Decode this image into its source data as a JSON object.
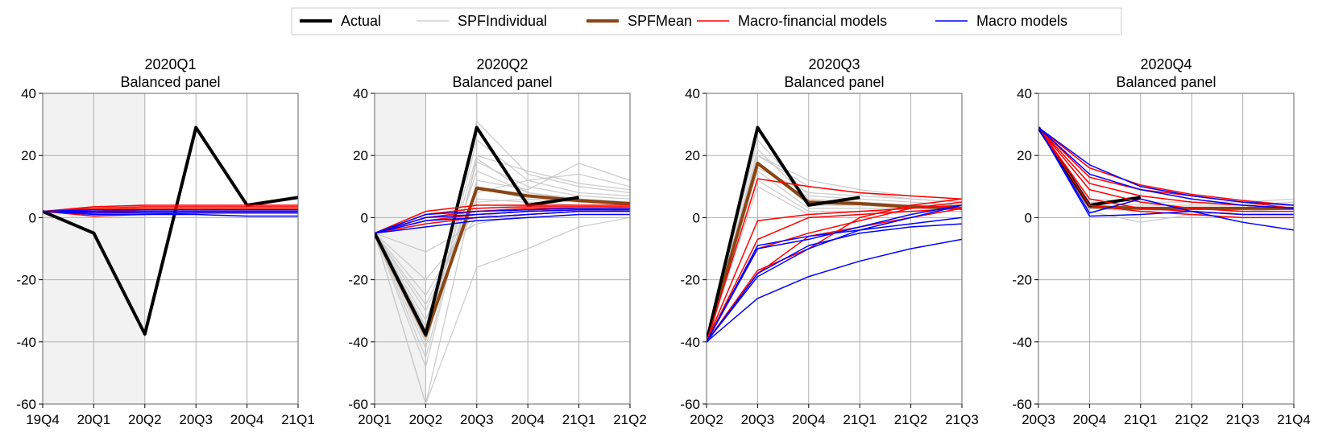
{
  "legend": {
    "placement": "top-center",
    "entries": [
      {
        "label": "Actual",
        "color": "#000000"
      },
      {
        "label": "SPFIndividual",
        "color": "#c8c8c8"
      },
      {
        "label": "SPFMean",
        "color": "#8b4513"
      },
      {
        "label": "Macro-financial models",
        "color": "#ff0000"
      },
      {
        "label": "Macro models",
        "color": "#0000ff"
      }
    ]
  },
  "colors": {
    "actual": "#000000",
    "spf_individual": "#c8c8c8",
    "spf_mean": "#8b4513",
    "macro_financial": "#ff0000",
    "macro": "#0000ff",
    "shading": "#f2f2f2",
    "grid": "#b0b0b0"
  },
  "chart_data": [
    {
      "type": "line",
      "title": "2020Q1",
      "subtitle": "Balanced panel",
      "x": [
        "19Q4",
        "20Q1",
        "20Q2",
        "20Q3",
        "20Q4",
        "21Q1"
      ],
      "ylim": [
        -60,
        40
      ],
      "yticks": [
        -60,
        -40,
        -20,
        0,
        20,
        40
      ],
      "grid": true,
      "shaded_x": [
        "19Q4",
        "20Q2"
      ],
      "actual": [
        2,
        -5,
        -37.5,
        29,
        4,
        6.5
      ],
      "spf_mean": [],
      "spf_individual": [],
      "macro_financial": [
        [
          2,
          3.5,
          4,
          4,
          4,
          4
        ],
        [
          2,
          3,
          3.5,
          3.5,
          3.5,
          3.5
        ],
        [
          2,
          2.5,
          3,
          3,
          3,
          3
        ],
        [
          2,
          2,
          2.5,
          2.5,
          2.5,
          2.5
        ],
        [
          2,
          1.5,
          2,
          2,
          2,
          2
        ],
        [
          2,
          0.5,
          1,
          1.5,
          1.5,
          1.5
        ]
      ],
      "macro": [
        [
          2,
          2.5,
          2.5,
          2.5,
          2.5,
          2.5
        ],
        [
          2,
          2,
          2,
          2,
          2,
          2
        ],
        [
          2,
          1.5,
          1.5,
          1.5,
          1.5,
          1.5
        ],
        [
          2,
          1,
          1,
          1,
          0.5,
          0.5
        ]
      ]
    },
    {
      "type": "line",
      "title": "2020Q2",
      "subtitle": "Balanced panel",
      "x": [
        "20Q1",
        "20Q2",
        "20Q3",
        "20Q4",
        "21Q1",
        "21Q2"
      ],
      "ylim": [
        -60,
        40
      ],
      "yticks": [
        -60,
        -40,
        -20,
        0,
        20,
        40
      ],
      "grid": true,
      "shaded_x": [
        "20Q1",
        "20Q2"
      ],
      "actual": [
        -5,
        -37.5,
        29,
        4,
        6.5,
        null
      ],
      "spf_mean": [
        -5,
        -38,
        9.5,
        7,
        5.5,
        4.5
      ],
      "spf_individual": [
        [
          -5,
          -48,
          19,
          8,
          6,
          5
        ],
        [
          -5,
          -45,
          18,
          10,
          7,
          6
        ],
        [
          -5,
          -42,
          25,
          12,
          8,
          7
        ],
        [
          -5,
          -40,
          31,
          14,
          10,
          8
        ],
        [
          -5,
          -36,
          15,
          8,
          6,
          5
        ],
        [
          -5,
          -33,
          10,
          6,
          5,
          4
        ],
        [
          -5,
          -30,
          6,
          5,
          4,
          3
        ],
        [
          -5,
          -25,
          3,
          4,
          3,
          3
        ],
        [
          -5,
          -20,
          0,
          3,
          3,
          2
        ],
        [
          -5,
          -11,
          -2,
          1,
          2,
          2
        ],
        [
          -5,
          -60,
          -16,
          -10,
          -3,
          0
        ],
        [
          -5,
          -60,
          12,
          9,
          17.5,
          12
        ],
        [
          -5,
          -35,
          8,
          12,
          14,
          10
        ],
        [
          -5,
          -38,
          20,
          15,
          11,
          9
        ],
        [
          -5,
          -28,
          5,
          6,
          5,
          5
        ]
      ],
      "macro_financial": [
        [
          -5,
          2,
          4,
          4,
          4,
          4
        ],
        [
          -5,
          1,
          3,
          3.5,
          3.5,
          3.5
        ],
        [
          -5,
          0,
          2,
          3,
          3,
          3
        ],
        [
          -5,
          -1,
          1,
          2,
          2.5,
          2.5
        ],
        [
          -5,
          -2,
          0,
          1,
          2,
          2
        ]
      ],
      "macro": [
        [
          -5,
          1,
          2,
          2.5,
          3,
          3
        ],
        [
          -5,
          0,
          1,
          2,
          2.5,
          2.5
        ],
        [
          -5,
          -1,
          0,
          1,
          2,
          2
        ],
        [
          -5,
          -3,
          -1,
          0,
          1,
          1
        ]
      ]
    },
    {
      "type": "line",
      "title": "2020Q3",
      "subtitle": "Balanced panel",
      "x": [
        "20Q2",
        "20Q3",
        "20Q4",
        "21Q1",
        "21Q2",
        "21Q3"
      ],
      "ylim": [
        -60,
        40
      ],
      "yticks": [
        -60,
        -40,
        -20,
        0,
        20,
        40
      ],
      "grid": true,
      "shaded_x": [],
      "actual": [
        -40,
        29,
        4,
        6.5,
        null,
        null
      ],
      "spf_mean": [
        -40,
        17.5,
        5,
        4.5,
        3.5,
        3
      ],
      "spf_individual": [
        [
          -40,
          25,
          7,
          6,
          5,
          4
        ],
        [
          -40,
          22,
          6,
          5,
          4,
          4
        ],
        [
          -40,
          20,
          10,
          8,
          6,
          5
        ],
        [
          -40,
          18,
          4,
          4,
          3,
          3
        ],
        [
          -40,
          15,
          3,
          3,
          3,
          3
        ],
        [
          -40,
          12,
          2,
          2,
          2,
          2
        ],
        [
          -40,
          10,
          1,
          2,
          2,
          2
        ],
        [
          -40,
          20,
          12,
          9,
          7,
          6
        ],
        [
          -40,
          16,
          8,
          7,
          6,
          5
        ]
      ],
      "macro_financial": [
        [
          -40,
          12.5,
          10,
          8,
          7,
          6
        ],
        [
          -40,
          -1,
          1,
          2,
          3,
          4
        ],
        [
          -40,
          -7,
          0,
          1,
          2,
          3
        ],
        [
          -40,
          -10,
          -5,
          -1,
          3,
          5
        ],
        [
          -40,
          -17,
          -10,
          0,
          4,
          6
        ],
        [
          -40,
          -18,
          -6,
          -3,
          0,
          3
        ]
      ],
      "macro": [
        [
          -40,
          -9,
          -6,
          -4,
          -2,
          0
        ],
        [
          -40,
          -10,
          -7,
          -3,
          1,
          4
        ],
        [
          -40,
          -18,
          -9,
          -5,
          -3,
          -2
        ],
        [
          -40,
          -19,
          -10,
          -4,
          0,
          4
        ],
        [
          -40,
          -26,
          -19,
          -14,
          -10,
          -7
        ]
      ]
    },
    {
      "type": "line",
      "title": "2020Q4",
      "subtitle": "Balanced panel",
      "x": [
        "20Q3",
        "20Q4",
        "21Q1",
        "21Q2",
        "21Q3",
        "21Q4"
      ],
      "ylim": [
        -60,
        40
      ],
      "yticks": [
        -60,
        -40,
        -20,
        0,
        20,
        40
      ],
      "grid": true,
      "shaded_x": [],
      "actual": [
        29,
        4,
        6.5,
        null,
        null,
        null
      ],
      "spf_mean": [
        29,
        3.5,
        3,
        3,
        3,
        3
      ],
      "spf_individual": [
        [
          29,
          6,
          5,
          5,
          5,
          6
        ],
        [
          29,
          5,
          4,
          4,
          4,
          5
        ],
        [
          29,
          3,
          2,
          3,
          3,
          4
        ],
        [
          29,
          2,
          -1.5,
          1,
          2,
          3
        ]
      ],
      "macro_financial": [
        [
          29,
          16,
          10.5,
          7.5,
          5.5,
          4
        ],
        [
          29,
          13,
          9,
          7,
          5,
          3
        ],
        [
          29,
          11,
          7,
          5,
          4,
          3
        ],
        [
          29,
          9,
          5,
          3,
          2,
          2
        ],
        [
          29,
          6,
          3,
          2,
          1,
          1
        ],
        [
          29,
          4,
          2,
          1,
          0,
          0
        ]
      ],
      "macro": [
        [
          29,
          17,
          10,
          7,
          5,
          4
        ],
        [
          29,
          14,
          9,
          6,
          4,
          3
        ],
        [
          29,
          0.5,
          1,
          2,
          1,
          1
        ],
        [
          29,
          1.5,
          6,
          2,
          -1.5,
          -4
        ]
      ]
    }
  ]
}
